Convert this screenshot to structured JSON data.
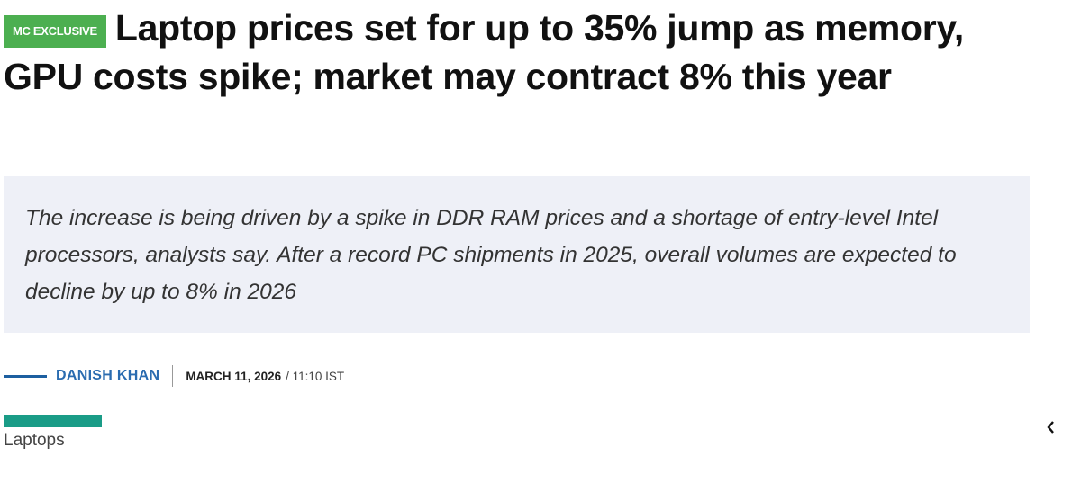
{
  "header": {
    "badge": "MC EXCLUSIVE",
    "title": "Laptop prices set for up to 35% jump as memory, GPU costs spike; market may contract 8% this year"
  },
  "summary": "The increase is being driven by a spike in DDR RAM prices and a shortage of entry-level Intel processors, analysts say. After a record PC shipments in 2025, overall volumes are expected to decline by up to 8% in 2026",
  "byline": {
    "author": "DANISH KHAN",
    "date": "MARCH 11, 2026",
    "time": "/ 11:10 IST"
  },
  "tag": "Laptops"
}
